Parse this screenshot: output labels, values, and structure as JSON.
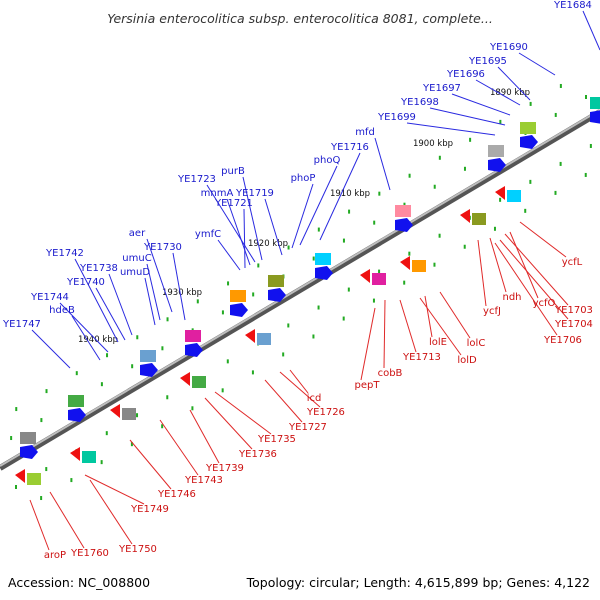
{
  "header": {
    "title": "Yersinia enterocolitica subsp. enterocolitica 8081, complete..."
  },
  "footer": {
    "accession": "Accession: NC_008800",
    "summary": "Topology: circular; Length: 4,615,899 bp; Genes: 4,122"
  },
  "colors": {
    "backbone": "#7f7f7f",
    "forward_arrow": "#1111ee",
    "reverse_arrow": "#ee1111",
    "forward_label": "#1a1acc",
    "reverse_label": "#cc1111",
    "tick": "#22aa22"
  },
  "kbp_ticks": [
    "1890 kbp",
    "1900 kbp",
    "1910 kbp",
    "1920 kbp",
    "1930 kbp",
    "1940 kbp"
  ],
  "forward_genes": [
    "YE1684",
    "YE1690",
    "YE1695",
    "YE1696",
    "YE1697",
    "YE1698",
    "YE1699",
    "mfd",
    "YE1716",
    "phoQ",
    "phoP",
    "YE1719",
    "purB",
    "YE1723",
    "mnmA",
    "YE1721",
    "ymfC",
    "YE1730",
    "aer",
    "umuC",
    "umuD",
    "YE1738",
    "YE1742",
    "YE1740",
    "YE1744",
    "hdeB",
    "YE1747"
  ],
  "reverse_genes": [
    "ycfL",
    "ycfO",
    "YE1703",
    "ndh",
    "YE1704",
    "ycfJ",
    "YE1706",
    "lolC",
    "lolE",
    "lolD",
    "YE1713",
    "cobB",
    "pepT",
    "icd",
    "YE1726",
    "YE1727",
    "YE1735",
    "YE1736",
    "YE1739",
    "YE1743",
    "YE1746",
    "YE1749",
    "YE1750",
    "YE1760",
    "aroP"
  ]
}
